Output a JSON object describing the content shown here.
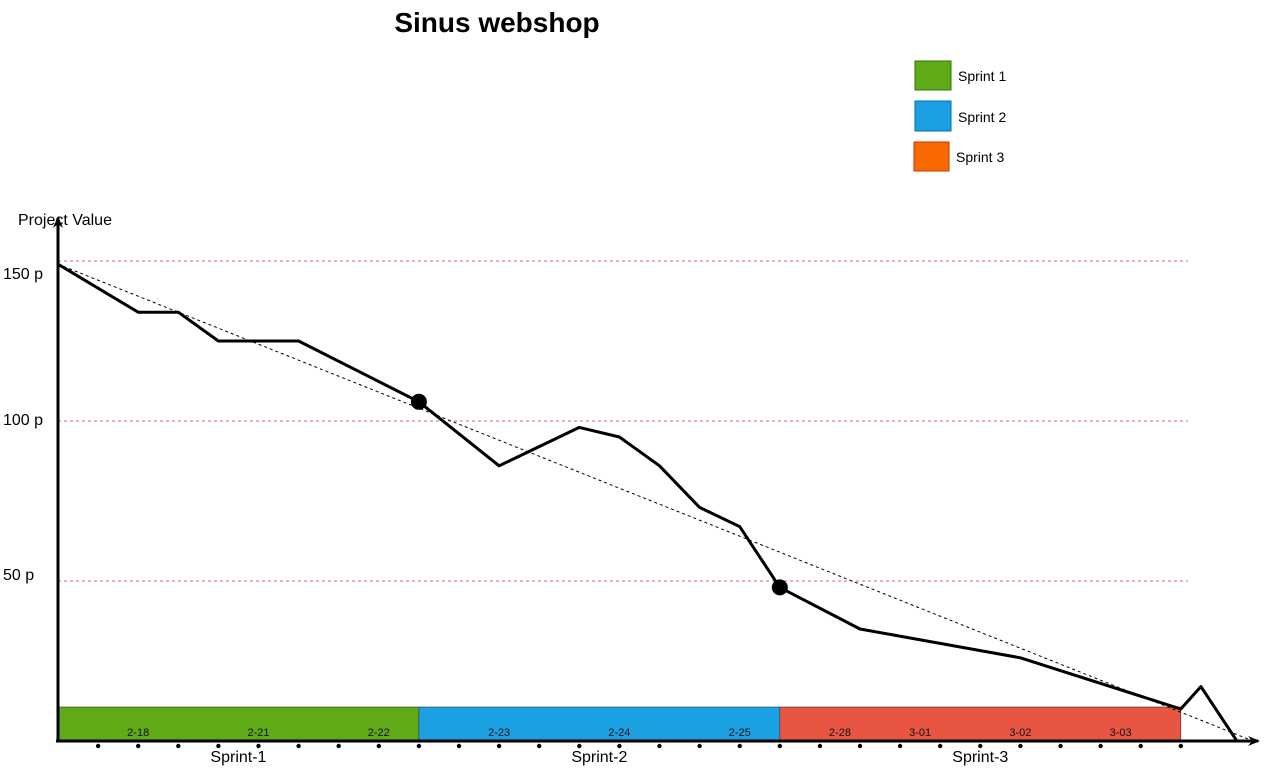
{
  "chart_data": {
    "type": "line",
    "title": "Sinus webshop",
    "ylabel": "Project Value",
    "y_ticks": [
      "150 p",
      "100 p",
      "50 p"
    ],
    "y_tick_values": [
      150,
      100,
      50
    ],
    "ylim": [
      0,
      150
    ],
    "grid": "horizontal dashed red at tick values",
    "legend_position": "top-right",
    "legend": [
      {
        "name": "Sprint 1",
        "color": "#60a917"
      },
      {
        "name": "Sprint 2",
        "color": "#1ba1e2"
      },
      {
        "name": "Sprint 3",
        "color": "#fa6800"
      }
    ],
    "sprints": [
      {
        "label": "Sprint-1",
        "color": "#60a917",
        "start_day": 0,
        "end_day": 9
      },
      {
        "label": "Sprint-2",
        "color": "#1ba1e2",
        "start_day": 9,
        "end_day": 18
      },
      {
        "label": "Sprint-3",
        "color": "#e85542",
        "start_day": 18,
        "end_day": 28
      }
    ],
    "date_labels": [
      {
        "text": "2-18",
        "day": 2
      },
      {
        "text": "2-21",
        "day": 5
      },
      {
        "text": "2-22",
        "day": 8
      },
      {
        "text": "2-23",
        "day": 11
      },
      {
        "text": "2-24",
        "day": 14
      },
      {
        "text": "2-25",
        "day": 17
      },
      {
        "text": "2-28",
        "day": 19.5
      },
      {
        "text": "3-01",
        "day": 21.5
      },
      {
        "text": "3-02",
        "day": 24
      },
      {
        "text": "3-03",
        "day": 26.5
      }
    ],
    "tick_dot_days": [
      1,
      2,
      3,
      4,
      5,
      6,
      7,
      8,
      9,
      10,
      11,
      12,
      13,
      14,
      15,
      16,
      17,
      18,
      19,
      20,
      21,
      22,
      23,
      24,
      25,
      26,
      27,
      28
    ],
    "series": [
      {
        "name": "",
        "style": "solid",
        "points": [
          {
            "x": 0,
            "y": 149
          },
          {
            "x": 2,
            "y": 134
          },
          {
            "x": 3,
            "y": 134
          },
          {
            "x": 4,
            "y": 125
          },
          {
            "x": 6,
            "y": 125
          },
          {
            "x": 9,
            "y": 106
          },
          {
            "x": 11,
            "y": 86
          },
          {
            "x": 13,
            "y": 98
          },
          {
            "x": 14,
            "y": 95
          },
          {
            "x": 15,
            "y": 86
          },
          {
            "x": 16,
            "y": 73
          },
          {
            "x": 17,
            "y": 67
          },
          {
            "x": 18,
            "y": 48
          },
          {
            "x": 20,
            "y": 35
          },
          {
            "x": 24,
            "y": 26
          },
          {
            "x": 28,
            "y": 10
          },
          {
            "x": 28.5,
            "y": 17
          },
          {
            "x": 29.4,
            "y": 0
          }
        ]
      },
      {
        "name": "",
        "style": "dashed",
        "points": [
          {
            "x": 0,
            "y": 149
          },
          {
            "x": 29.8,
            "y": 0
          }
        ]
      }
    ],
    "markers": [
      {
        "x": 9,
        "y": 106
      },
      {
        "x": 18,
        "y": 48
      }
    ]
  }
}
